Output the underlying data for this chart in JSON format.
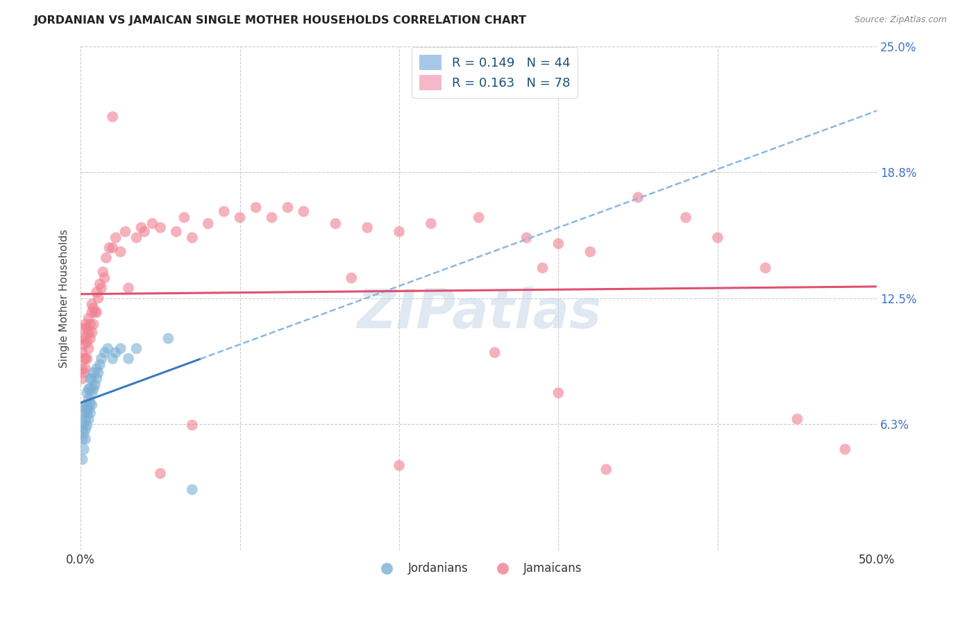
{
  "title": "JORDANIAN VS JAMAICAN SINGLE MOTHER HOUSEHOLDS CORRELATION CHART",
  "source": "Source: ZipAtlas.com",
  "ylabel": "Single Mother Households",
  "xlim": [
    0.0,
    0.5
  ],
  "ylim": [
    -0.01,
    0.27
  ],
  "plot_ylim": [
    0.0,
    0.25
  ],
  "ytick_vals": [
    0.0,
    0.0625,
    0.125,
    0.1875,
    0.25
  ],
  "ytick_labels": [
    "",
    "6.3%",
    "12.5%",
    "18.8%",
    "25.0%"
  ],
  "xtick_vals": [
    0.0,
    0.1,
    0.2,
    0.3,
    0.4,
    0.5
  ],
  "xtick_labels": [
    "0.0%",
    "",
    "",
    "",
    "",
    "50.0%"
  ],
  "background_color": "#ffffff",
  "grid_color": "#cccccc",
  "scatter_jordanian_color": "#7bafd4",
  "scatter_jamaican_color": "#f08090",
  "trend_jordanian_solid_color": "#3a7abf",
  "trend_jordanian_dash_color": "#8ab8e0",
  "trend_jamaican_color": "#e05070",
  "watermark_text": "ZIPatlas",
  "legend_label_blue": "R = 0.149   N = 44",
  "legend_label_pink": "R = 0.163   N = 78",
  "legend_color_blue": "#a8c8e8",
  "legend_color_pink": "#f4b8c8",
  "bottom_legend_label_blue": "Jordanians",
  "bottom_legend_label_pink": "Jamaicans",
  "jordanians_x": [
    0.001,
    0.001,
    0.001,
    0.002,
    0.002,
    0.002,
    0.002,
    0.003,
    0.003,
    0.003,
    0.003,
    0.003,
    0.004,
    0.004,
    0.004,
    0.004,
    0.005,
    0.005,
    0.005,
    0.005,
    0.006,
    0.006,
    0.006,
    0.006,
    0.007,
    0.007,
    0.007,
    0.008,
    0.008,
    0.009,
    0.01,
    0.01,
    0.011,
    0.012,
    0.013,
    0.015,
    0.017,
    0.02,
    0.022,
    0.025,
    0.03,
    0.035,
    0.055,
    0.07
  ],
  "jordanians_y": [
    0.045,
    0.055,
    0.06,
    0.05,
    0.058,
    0.063,
    0.068,
    0.055,
    0.06,
    0.065,
    0.07,
    0.072,
    0.062,
    0.068,
    0.072,
    0.078,
    0.065,
    0.07,
    0.075,
    0.08,
    0.068,
    0.073,
    0.08,
    0.085,
    0.072,
    0.078,
    0.085,
    0.08,
    0.088,
    0.082,
    0.085,
    0.09,
    0.088,
    0.092,
    0.095,
    0.098,
    0.1,
    0.095,
    0.098,
    0.1,
    0.095,
    0.1,
    0.105,
    0.03
  ],
  "jamaicans_x": [
    0.001,
    0.001,
    0.001,
    0.001,
    0.002,
    0.002,
    0.002,
    0.002,
    0.003,
    0.003,
    0.003,
    0.003,
    0.004,
    0.004,
    0.004,
    0.005,
    0.005,
    0.005,
    0.006,
    0.006,
    0.007,
    0.007,
    0.007,
    0.008,
    0.008,
    0.009,
    0.01,
    0.01,
    0.011,
    0.012,
    0.013,
    0.014,
    0.015,
    0.016,
    0.018,
    0.02,
    0.022,
    0.025,
    0.028,
    0.03,
    0.035,
    0.038,
    0.04,
    0.045,
    0.05,
    0.06,
    0.065,
    0.07,
    0.08,
    0.09,
    0.1,
    0.11,
    0.12,
    0.13,
    0.14,
    0.16,
    0.18,
    0.2,
    0.22,
    0.25,
    0.28,
    0.29,
    0.3,
    0.32,
    0.35,
    0.38,
    0.4,
    0.43,
    0.45,
    0.48,
    0.02,
    0.17,
    0.26,
    0.3,
    0.2,
    0.33,
    0.05,
    0.07
  ],
  "jamaicans_y": [
    0.085,
    0.09,
    0.098,
    0.105,
    0.088,
    0.095,
    0.102,
    0.11,
    0.09,
    0.095,
    0.105,
    0.112,
    0.095,
    0.103,
    0.11,
    0.1,
    0.108,
    0.115,
    0.105,
    0.112,
    0.108,
    0.118,
    0.122,
    0.112,
    0.12,
    0.118,
    0.118,
    0.128,
    0.125,
    0.132,
    0.13,
    0.138,
    0.135,
    0.145,
    0.15,
    0.15,
    0.155,
    0.148,
    0.158,
    0.13,
    0.155,
    0.16,
    0.158,
    0.162,
    0.16,
    0.158,
    0.165,
    0.155,
    0.162,
    0.168,
    0.165,
    0.17,
    0.165,
    0.17,
    0.168,
    0.162,
    0.16,
    0.158,
    0.162,
    0.165,
    0.155,
    0.14,
    0.152,
    0.148,
    0.175,
    0.165,
    0.155,
    0.14,
    0.065,
    0.05,
    0.215,
    0.135,
    0.098,
    0.078,
    0.042,
    0.04,
    0.038,
    0.062
  ]
}
